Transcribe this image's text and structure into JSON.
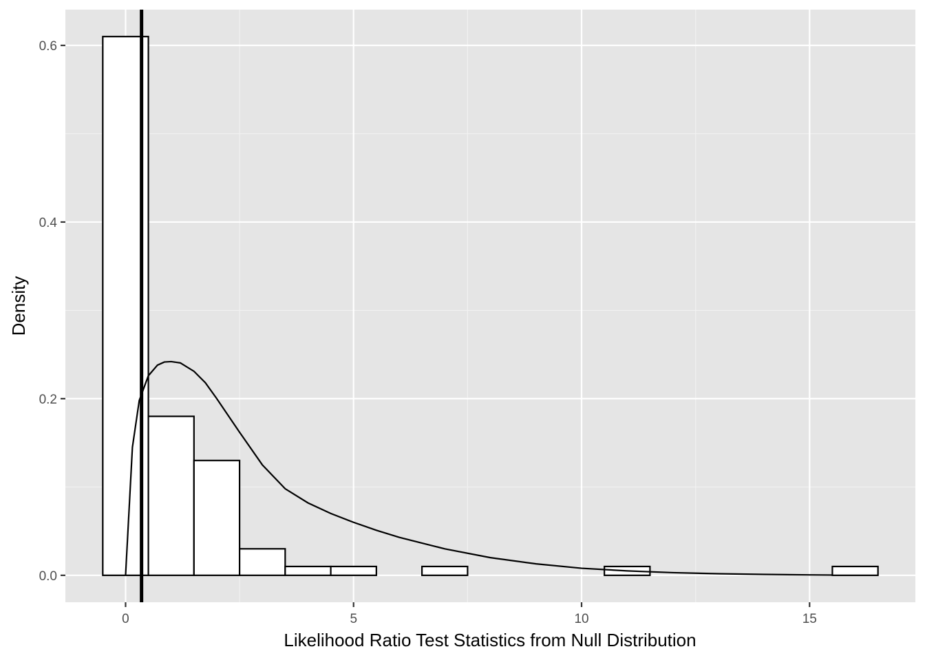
{
  "chart_data": {
    "type": "bar",
    "subtype": "histogram",
    "title": "",
    "xlabel": "Likelihood Ratio Test Statistics from Null Distribution",
    "ylabel": "Density",
    "xlim": [
      -1.32,
      17.32
    ],
    "ylim": [
      -0.0305,
      0.6405
    ],
    "xticks": [
      0,
      5,
      10,
      15
    ],
    "xtick_labels": [
      "0",
      "5",
      "10",
      "15"
    ],
    "yticks": [
      0.0,
      0.2,
      0.4,
      0.6
    ],
    "ytick_labels": [
      "0.0",
      "0.2",
      "0.4",
      "0.6"
    ],
    "grid": true,
    "legend": "none",
    "bin_width": 1,
    "bins": [
      {
        "center": 0,
        "density": 0.61
      },
      {
        "center": 1,
        "density": 0.18
      },
      {
        "center": 2,
        "density": 0.13
      },
      {
        "center": 3,
        "density": 0.03
      },
      {
        "center": 4,
        "density": 0.01
      },
      {
        "center": 5,
        "density": 0.01
      },
      {
        "center": 6,
        "density": 0.0
      },
      {
        "center": 7,
        "density": 0.01
      },
      {
        "center": 8,
        "density": 0.0
      },
      {
        "center": 9,
        "density": 0.0
      },
      {
        "center": 10,
        "density": 0.0
      },
      {
        "center": 11,
        "density": 0.01
      },
      {
        "center": 12,
        "density": 0.0
      },
      {
        "center": 13,
        "density": 0.0
      },
      {
        "center": 14,
        "density": 0.0
      },
      {
        "center": 15,
        "density": 0.0
      },
      {
        "center": 16,
        "density": 0.01
      }
    ],
    "density_curve": {
      "x": [
        0,
        0.15,
        0.3,
        0.5,
        0.7,
        0.85,
        1.0,
        1.2,
        1.5,
        1.75,
        2,
        2.5,
        3,
        3.5,
        4,
        4.5,
        5,
        5.5,
        6,
        7,
        8,
        9,
        10,
        11,
        12,
        13,
        14,
        15,
        15.5
      ],
      "y": [
        0,
        0.145,
        0.198,
        0.226,
        0.238,
        0.2415,
        0.242,
        0.2405,
        0.231,
        0.218,
        0.2,
        0.162,
        0.125,
        0.098,
        0.082,
        0.07,
        0.06,
        0.051,
        0.043,
        0.03,
        0.02,
        0.013,
        0.008,
        0.005,
        0.003,
        0.0018,
        0.001,
        0.0005,
        0.0003
      ]
    },
    "vline": {
      "x": 0.35
    },
    "colors": {
      "panel_background": "#e5e5e5",
      "grid_major": "#ffffff",
      "grid_minor": "#f2f2f2",
      "bar_fill": "#ffffff",
      "bar_stroke": "#000000",
      "curve": "#000000",
      "vline": "#000000",
      "tick_text": "#4d4d4d"
    }
  }
}
